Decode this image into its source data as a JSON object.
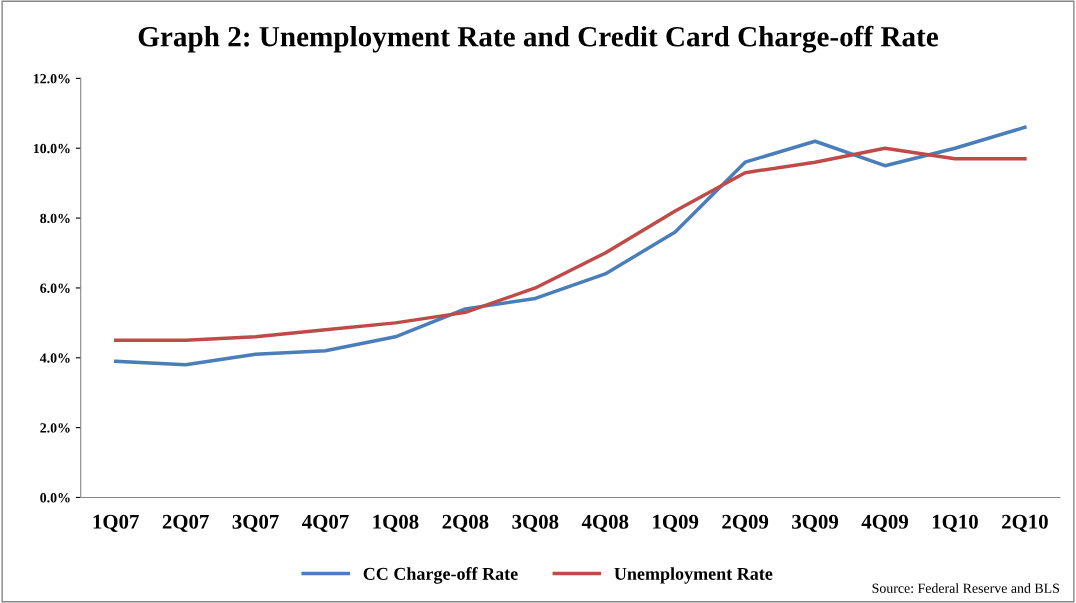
{
  "chart_data": {
    "type": "line",
    "title": "Graph 2: Unemployment Rate and Credit Card Charge-off Rate",
    "categories": [
      "1Q07",
      "2Q07",
      "3Q07",
      "4Q07",
      "1Q08",
      "2Q08",
      "3Q08",
      "4Q08",
      "1Q09",
      "2Q09",
      "3Q09",
      "4Q09",
      "1Q10",
      "2Q10"
    ],
    "series": [
      {
        "name": "CC Charge-off Rate",
        "color": "#4a7ebb",
        "values": [
          3.9,
          3.8,
          4.1,
          4.2,
          4.6,
          5.4,
          5.7,
          6.4,
          7.6,
          9.6,
          10.2,
          9.5,
          10.0,
          10.6
        ]
      },
      {
        "name": "Unemployment Rate",
        "color": "#be4b48",
        "values": [
          4.5,
          4.5,
          4.6,
          4.8,
          5.0,
          5.3,
          6.0,
          7.0,
          8.2,
          9.3,
          9.6,
          10.0,
          9.7,
          9.7
        ]
      }
    ],
    "ylim": [
      0,
      12
    ],
    "yticks": [
      {
        "value": 0,
        "label": "0.0%"
      },
      {
        "value": 2,
        "label": "2.0%"
      },
      {
        "value": 4,
        "label": "4.0%"
      },
      {
        "value": 6,
        "label": "6.0%"
      },
      {
        "value": 8,
        "label": "8.0%"
      },
      {
        "value": 10,
        "label": "10.0%"
      },
      {
        "value": 12,
        "label": "12.0%"
      }
    ],
    "grid": false,
    "legend": "bottom",
    "marker": "none",
    "line_style": "solid",
    "annotations": [
      "Source: Federal Reserve and BLS"
    ]
  }
}
